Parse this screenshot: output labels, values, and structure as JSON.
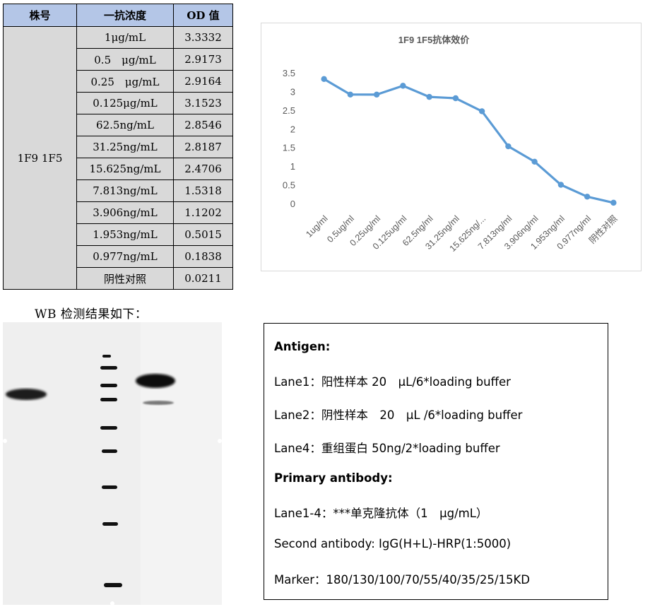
{
  "table": {
    "headers": [
      "株号",
      "一抗浓度",
      "OD 值"
    ],
    "strain": "1F9 1F5",
    "rows": [
      {
        "conc": "1μg/mL",
        "od": "3.3332"
      },
      {
        "conc": "0.5　μg/mL",
        "od": "2.9173"
      },
      {
        "conc": "0.25　μg/mL",
        "od": "2.9164"
      },
      {
        "conc": "0.125μg/mL",
        "od": "3.1523"
      },
      {
        "conc": "62.5ng/mL",
        "od": "2.8546"
      },
      {
        "conc": "31.25ng/mL",
        "od": "2.8187"
      },
      {
        "conc": "15.625ng/mL",
        "od": "2.4706"
      },
      {
        "conc": "7.813ng/mL",
        "od": "1.5318"
      },
      {
        "conc": "3.906ng/mL",
        "od": "1.1202"
      },
      {
        "conc": "1.953ng/mL",
        "od": "0.5015"
      },
      {
        "conc": "0.977ng/mL",
        "od": "0.1838"
      },
      {
        "conc": "阴性对照",
        "od": "0.0211"
      }
    ]
  },
  "chart_data": {
    "type": "line",
    "title": "1F9 1F5抗体效价",
    "categories": [
      "1ug/ml",
      "0.5ug/ml",
      "0.25ug/ml",
      "0.125ug/ml",
      "62.5ng/ml",
      "31.25ng/ml",
      "15.625ng/...",
      "7.813ng/ml",
      "3.906ng/ml",
      "1.953ng/ml",
      "0.977ng/ml",
      "阴性对照"
    ],
    "series": [
      {
        "values": [
          3.3332,
          2.9173,
          2.9164,
          3.1523,
          2.8546,
          2.8187,
          2.4706,
          1.5318,
          1.1202,
          0.5015,
          0.1838,
          0.0211
        ]
      }
    ],
    "yticks": [
      "3.5",
      "3",
      "2.5",
      "2",
      "1.5",
      "1",
      "0.5",
      "0"
    ],
    "ylim": [
      0,
      3.5
    ],
    "grid": false,
    "line_color": "#5b9bd5"
  },
  "wb_label": "WB 检测结果如下：",
  "info": {
    "antigen_title": "Antigen:",
    "lane1": "Lane1：阳性样本 20　μL/6*loading buffer",
    "lane2": "Lane2：阴性样本　20　μL /6*loading buffer",
    "lane4": "Lane4：重组蛋白 50ng/2*loading buffer",
    "primary_title": "Primary antibody:",
    "lane14": "Lane1-4：***单克隆抗体（1　μg/mL）",
    "second": "Second antibody: IgG(H+L)-HRP(1:5000)",
    "marker": "Marker：180/130/100/70/55/40/35/25/15KD"
  }
}
